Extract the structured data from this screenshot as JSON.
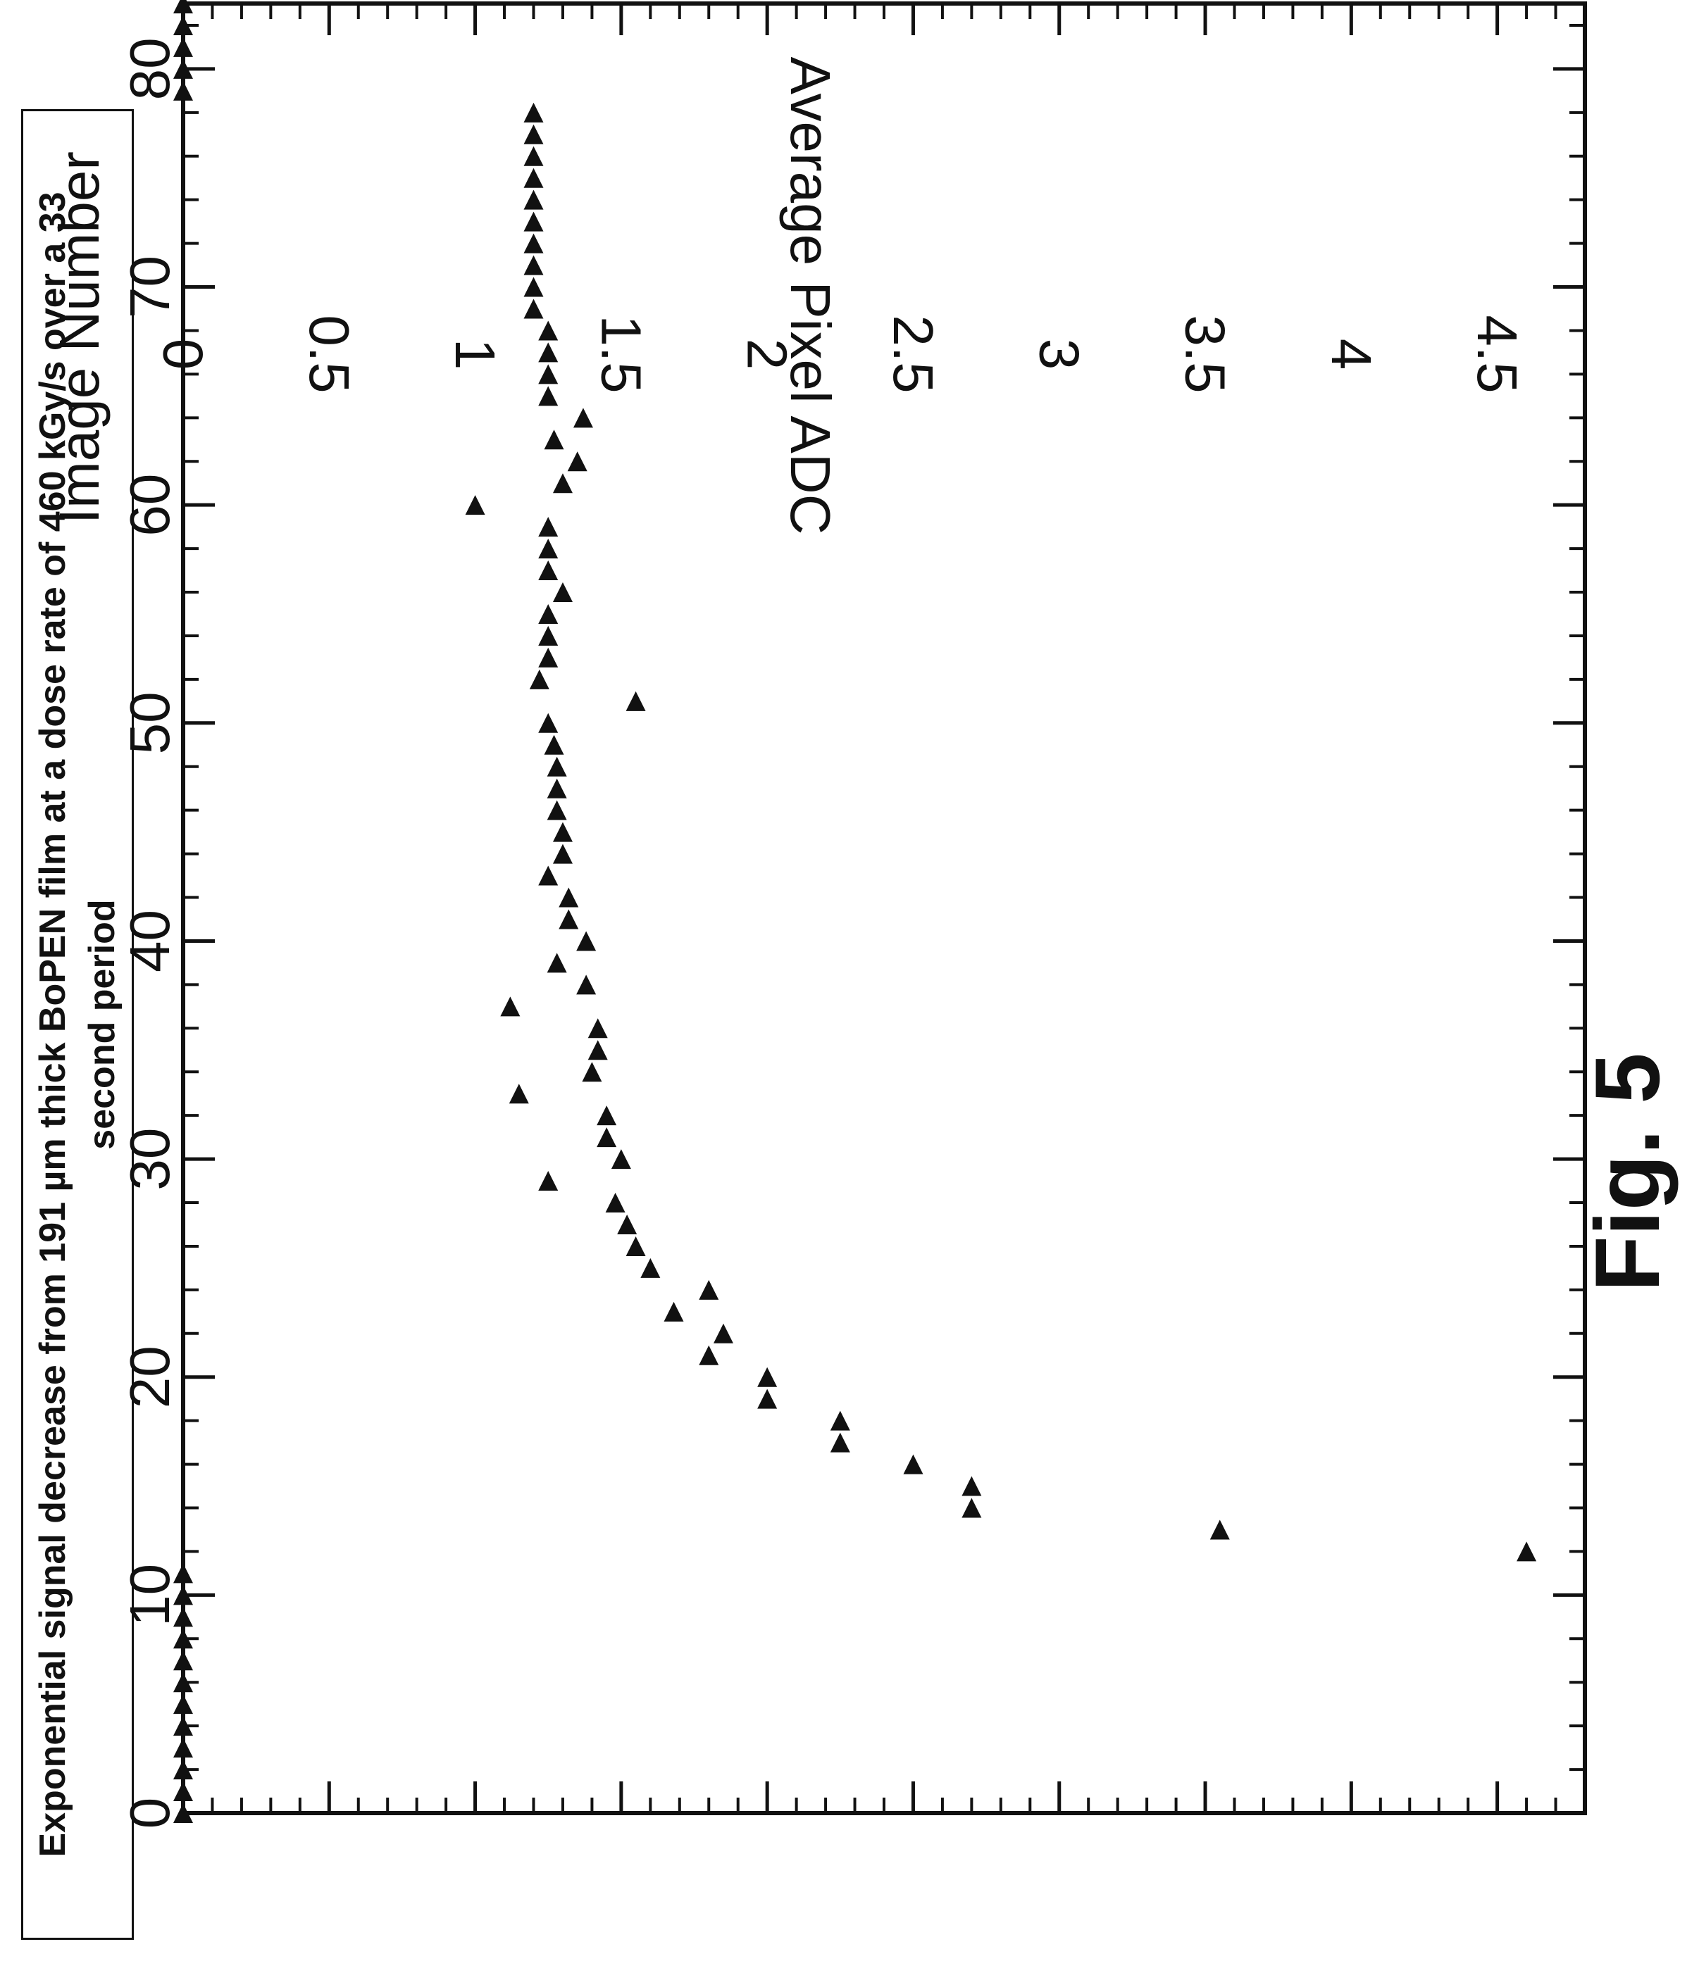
{
  "figure_label": "Fig. 5",
  "chart_data": {
    "type": "scatter",
    "title_lines": [
      "Exponential signal decrease from 191 µm thick BoPEN film at a dose rate of 460 kGy/s over a 33",
      "second period"
    ],
    "xlabel": "Image Number",
    "ylabel": "Average Pixel ADC",
    "xlim": [
      0,
      83
    ],
    "ylim": [
      0,
      4.8
    ],
    "xticks": [
      "0",
      "10",
      "20",
      "30",
      "40",
      "50",
      "60",
      "70",
      "80"
    ],
    "yticks": [
      "0",
      "0.5",
      "1",
      "1.5",
      "2",
      "2.5",
      "3",
      "3.5",
      "4",
      "4.5"
    ],
    "marker": "triangle",
    "grid": false,
    "legend": "none",
    "series": [
      {
        "x": [
          0,
          1,
          2,
          3,
          4,
          5,
          6,
          7,
          8,
          9,
          10,
          11,
          12,
          13,
          14,
          15,
          16,
          17,
          18,
          19,
          20,
          21,
          22,
          23,
          24,
          25,
          26,
          27,
          28,
          29,
          30,
          31,
          32,
          33,
          34,
          35,
          36,
          37,
          38,
          39,
          40,
          41,
          42,
          43,
          44,
          45,
          46,
          47,
          48,
          49,
          50,
          51,
          52,
          53,
          54,
          55,
          56,
          57,
          58,
          59,
          60,
          61,
          62,
          63,
          64,
          65,
          66,
          67,
          68,
          69,
          70,
          71,
          72,
          73,
          74,
          75,
          76,
          77,
          78,
          79,
          80,
          81,
          82,
          83
        ],
        "y": [
          0,
          0,
          0,
          0,
          0,
          0,
          0,
          0,
          0,
          0,
          0,
          0,
          4.6,
          3.55,
          2.7,
          2.7,
          2.5,
          2.25,
          2.25,
          2,
          2,
          1.8,
          1.85,
          1.68,
          1.8,
          1.6,
          1.55,
          1.52,
          1.48,
          1.25,
          1.5,
          1.45,
          1.45,
          1.15,
          1.4,
          1.42,
          1.42,
          1.12,
          1.38,
          1.28,
          1.38,
          1.32,
          1.32,
          1.25,
          1.3,
          1.3,
          1.28,
          1.28,
          1.28,
          1.27,
          1.25,
          1.55,
          1.22,
          1.25,
          1.25,
          1.25,
          1.3,
          1.25,
          1.25,
          1.25,
          1.0,
          1.3,
          1.35,
          1.27,
          1.37,
          1.25,
          1.25,
          1.25,
          1.25,
          1.2,
          1.2,
          1.2,
          1.2,
          1.2,
          1.2,
          1.2,
          1.2,
          1.2,
          1.2,
          0,
          0,
          0,
          0,
          0
        ]
      }
    ]
  }
}
